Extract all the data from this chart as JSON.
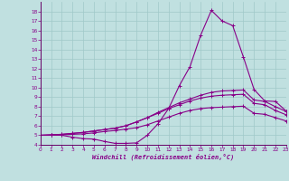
{
  "xlabel": "Windchill (Refroidissement éolien,°C)",
  "bg_color": "#c0e0e0",
  "grid_color": "#a0c8c8",
  "line_color": "#880088",
  "x_ticks": [
    0,
    1,
    2,
    3,
    4,
    5,
    6,
    7,
    8,
    9,
    10,
    11,
    12,
    13,
    14,
    15,
    16,
    17,
    18,
    19,
    20,
    21,
    22,
    23
  ],
  "y_ticks": [
    4,
    5,
    6,
    7,
    8,
    9,
    10,
    11,
    12,
    13,
    14,
    15,
    16,
    17,
    18
  ],
  "ylim": [
    4,
    19
  ],
  "xlim": [
    0,
    23
  ],
  "lines": [
    [
      5.0,
      5.0,
      5.0,
      4.8,
      4.65,
      4.6,
      4.35,
      4.15,
      4.15,
      4.2,
      5.0,
      6.2,
      7.8,
      10.2,
      12.2,
      15.5,
      18.1,
      17.0,
      16.5,
      13.2,
      9.8,
      8.6,
      8.55,
      7.55
    ],
    [
      5.0,
      5.05,
      5.1,
      5.2,
      5.3,
      5.45,
      5.6,
      5.75,
      6.0,
      6.4,
      6.85,
      7.4,
      7.9,
      8.4,
      8.8,
      9.2,
      9.5,
      9.65,
      9.7,
      9.75,
      8.7,
      8.55,
      8.0,
      7.5
    ],
    [
      5.0,
      5.05,
      5.1,
      5.2,
      5.3,
      5.45,
      5.6,
      5.75,
      6.0,
      6.4,
      6.85,
      7.3,
      7.8,
      8.2,
      8.6,
      8.9,
      9.1,
      9.2,
      9.25,
      9.3,
      8.35,
      8.2,
      7.6,
      7.15
    ],
    [
      5.0,
      5.0,
      5.05,
      5.1,
      5.15,
      5.25,
      5.4,
      5.5,
      5.65,
      5.8,
      6.1,
      6.5,
      6.9,
      7.3,
      7.6,
      7.8,
      7.9,
      7.95,
      8.0,
      8.05,
      7.3,
      7.2,
      6.85,
      6.5
    ]
  ]
}
